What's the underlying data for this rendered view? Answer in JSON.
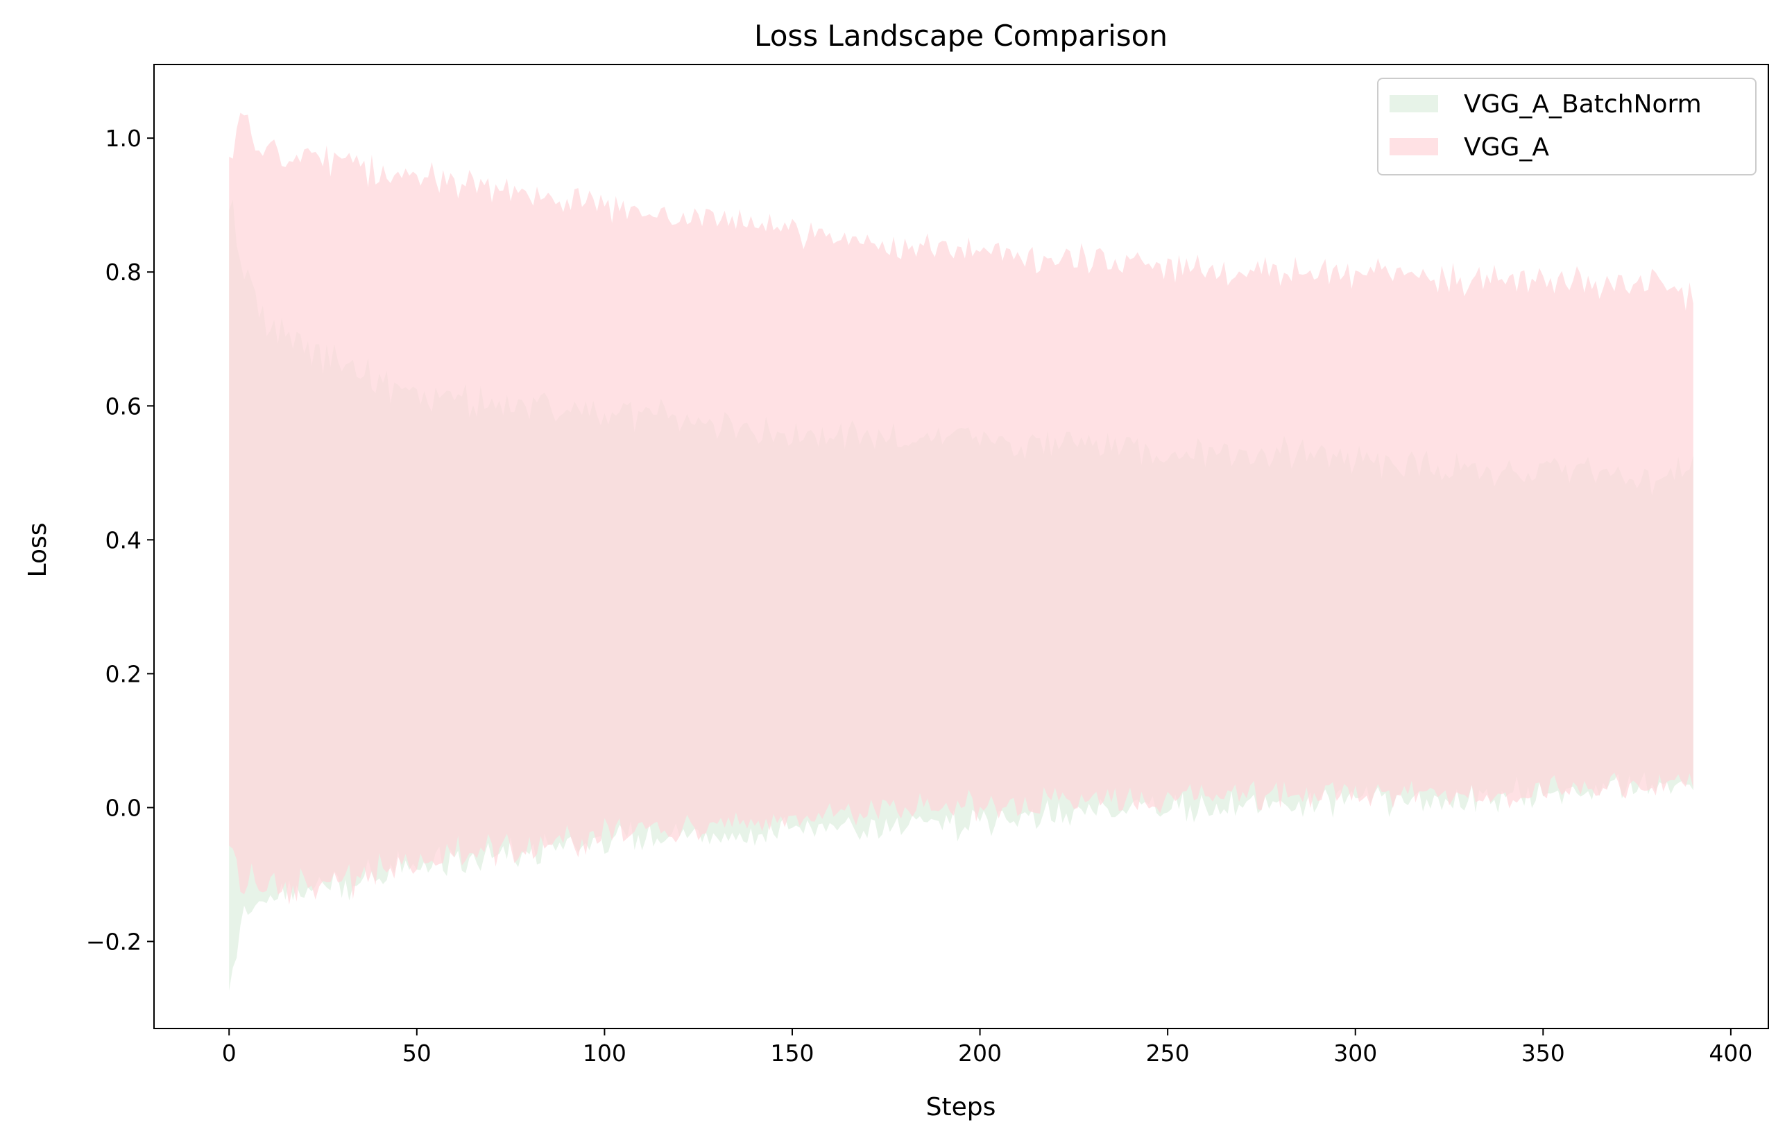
{
  "chart_data": {
    "type": "area",
    "title": "Loss Landscape Comparison",
    "xlabel": "Steps",
    "ylabel": "Loss",
    "xlim": [
      -20,
      410
    ],
    "ylim": [
      -0.33,
      1.11
    ],
    "xticks": [
      0,
      50,
      100,
      150,
      200,
      250,
      300,
      350,
      400
    ],
    "yticks": [
      -0.2,
      0.0,
      0.2,
      0.4,
      0.6,
      0.8,
      1.0
    ],
    "ytick_labels": [
      "−0.2",
      "0.0",
      "0.2",
      "0.4",
      "0.6",
      "0.8",
      "1.0"
    ],
    "grid": false,
    "legend_position": "top-right",
    "x_range": [
      0,
      390
    ],
    "series": [
      {
        "name": "VGG_A_BatchNorm",
        "color": "#d4e9d6",
        "opacity": 0.55,
        "x": [
          0,
          3,
          6,
          10,
          15,
          20,
          30,
          40,
          50,
          60,
          75,
          90,
          100,
          120,
          140,
          150,
          160,
          180,
          200,
          220,
          240,
          250,
          260,
          280,
          300,
          320,
          340,
          350,
          360,
          370,
          380,
          390
        ],
        "upper": [
          0.92,
          0.82,
          0.76,
          0.73,
          0.7,
          0.68,
          0.67,
          0.64,
          0.62,
          0.61,
          0.61,
          0.59,
          0.59,
          0.58,
          0.57,
          0.56,
          0.56,
          0.55,
          0.55,
          0.54,
          0.54,
          0.53,
          0.53,
          0.53,
          0.52,
          0.51,
          0.5,
          0.5,
          0.51,
          0.49,
          0.49,
          0.52
        ],
        "lower": [
          -0.25,
          -0.18,
          -0.16,
          -0.14,
          -0.13,
          -0.12,
          -0.11,
          -0.1,
          -0.09,
          -0.08,
          -0.07,
          -0.06,
          -0.05,
          -0.04,
          -0.04,
          -0.03,
          -0.03,
          -0.03,
          -0.02,
          -0.01,
          0.0,
          0.0,
          0.0,
          0.0,
          0.01,
          0.01,
          0.02,
          0.02,
          0.02,
          0.03,
          0.04,
          0.02
        ]
      },
      {
        "name": "VGG_A",
        "color": "#ffd6da",
        "opacity": 0.72,
        "x": [
          0,
          3,
          6,
          10,
          15,
          20,
          30,
          40,
          50,
          60,
          75,
          90,
          100,
          120,
          140,
          150,
          160,
          180,
          200,
          220,
          240,
          250,
          260,
          280,
          300,
          320,
          340,
          350,
          360,
          370,
          380,
          390
        ],
        "upper": [
          0.97,
          1.02,
          0.99,
          0.98,
          0.98,
          0.98,
          0.97,
          0.95,
          0.94,
          0.93,
          0.92,
          0.91,
          0.9,
          0.88,
          0.87,
          0.86,
          0.85,
          0.84,
          0.83,
          0.82,
          0.82,
          0.81,
          0.81,
          0.8,
          0.8,
          0.79,
          0.79,
          0.78,
          0.79,
          0.78,
          0.78,
          0.76
        ],
        "lower": [
          -0.06,
          -0.09,
          -0.11,
          -0.12,
          -0.12,
          -0.12,
          -0.11,
          -0.09,
          -0.08,
          -0.07,
          -0.06,
          -0.05,
          -0.04,
          -0.03,
          -0.02,
          -0.02,
          -0.01,
          0.0,
          0.0,
          0.01,
          0.01,
          0.01,
          0.02,
          0.02,
          0.02,
          0.02,
          0.02,
          0.03,
          0.03,
          0.03,
          0.03,
          0.05
        ]
      }
    ]
  }
}
